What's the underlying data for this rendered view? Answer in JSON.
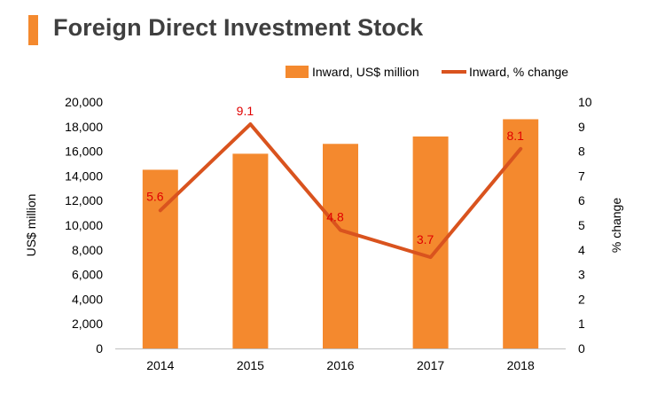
{
  "title": "Foreign Direct Investment Stock",
  "colors": {
    "accent": "#f4892e",
    "bar": "#f4892e",
    "line": "#d9531e",
    "label": "#e00000",
    "axis": "#bfbfbf",
    "title": "#3f3f3f"
  },
  "chart_data": {
    "type": "bar",
    "title": "Foreign Direct Investment Stock",
    "categories": [
      "2014",
      "2015",
      "2016",
      "2017",
      "2018"
    ],
    "series": [
      {
        "name": "Inward, US$ million",
        "type": "bar",
        "axis": "left",
        "values": [
          14500,
          15800,
          16600,
          17200,
          18600
        ]
      },
      {
        "name": "Inward, % change",
        "type": "line",
        "axis": "right",
        "values": [
          5.6,
          9.1,
          4.8,
          3.7,
          8.1
        ],
        "labels": [
          "5.6",
          "9.1",
          "4.8",
          "3.7",
          "8.1"
        ]
      }
    ],
    "ylabel": "US$ million",
    "y2label": "% change",
    "ylim": [
      0,
      20000
    ],
    "y2lim": [
      0,
      10
    ],
    "yticks": [
      "0",
      "2,000",
      "4,000",
      "6,000",
      "8,000",
      "10,000",
      "12,000",
      "14,000",
      "16,000",
      "18,000",
      "20,000"
    ],
    "y2ticks": [
      "0",
      "1",
      "2",
      "3",
      "4",
      "5",
      "6",
      "7",
      "8",
      "9",
      "10"
    ],
    "legend": "top-right",
    "grid": false
  }
}
